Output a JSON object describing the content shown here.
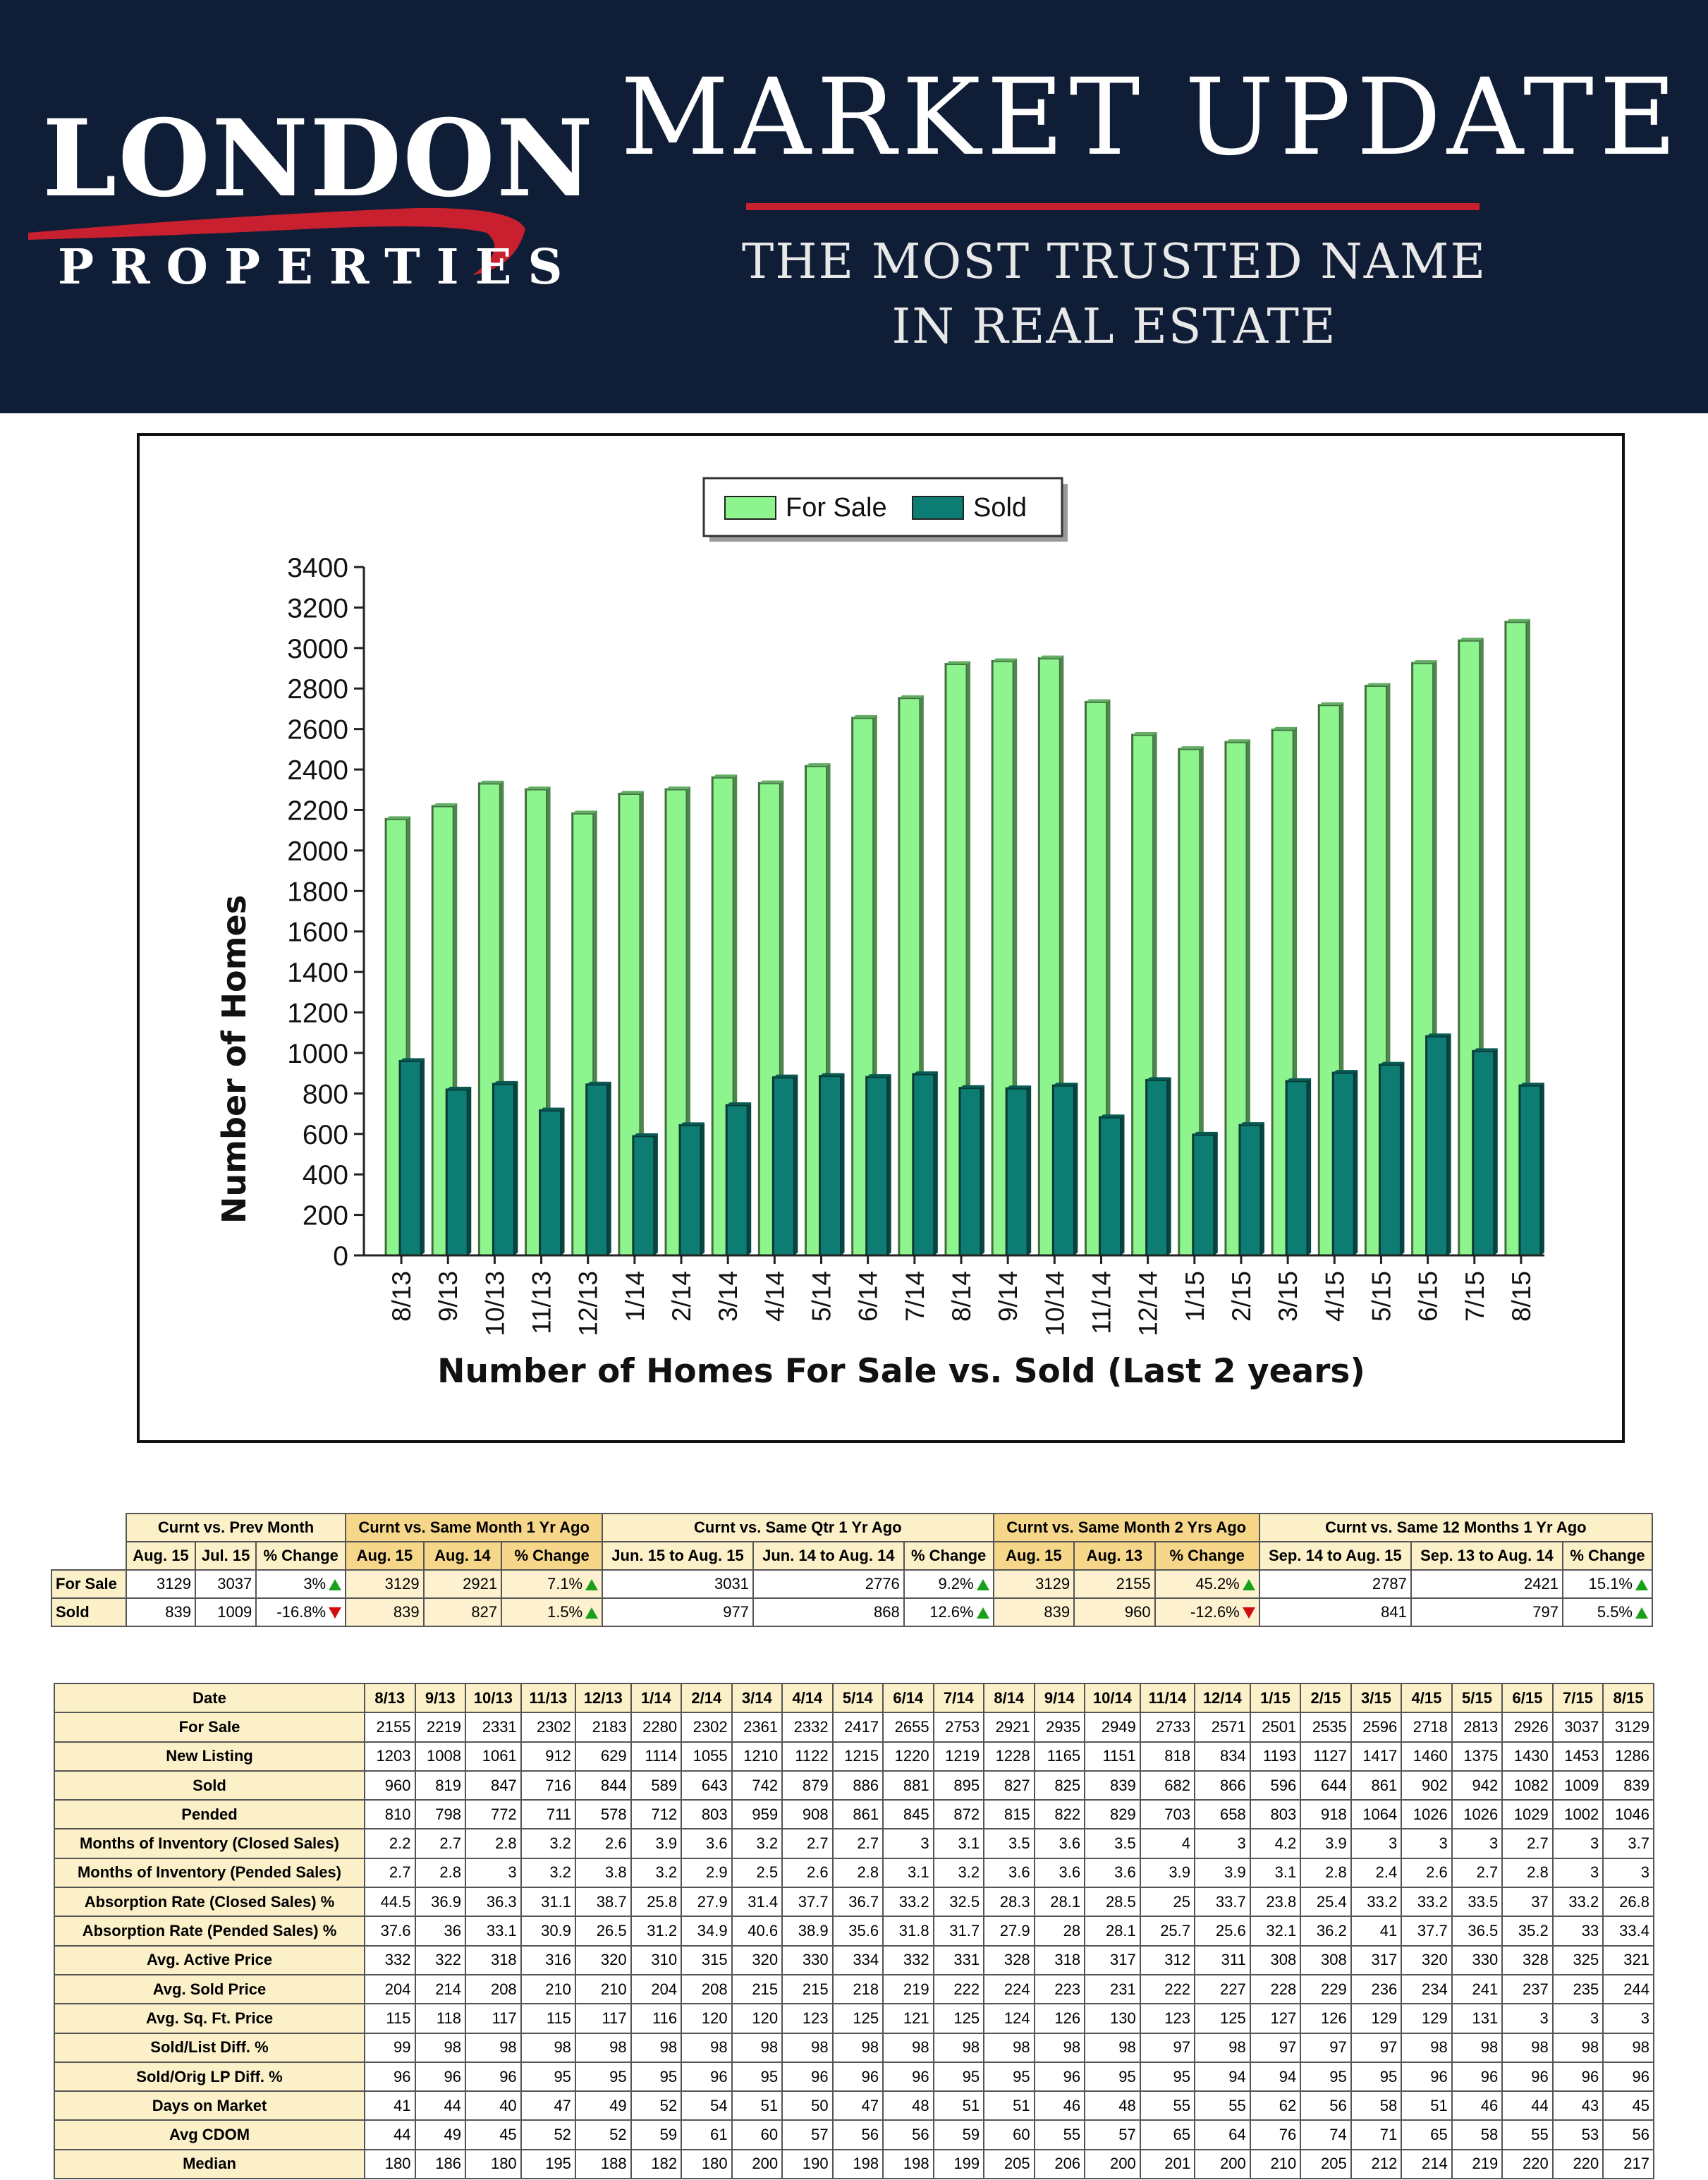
{
  "header": {
    "logo_main": "LONDON",
    "logo_sub": "PROPERTIES",
    "title": "MARKET UPDATE",
    "tagline_line1": "THE MOST TRUSTED NAME",
    "tagline_line2": "IN REAL ESTATE",
    "background_color": "#0f1d36",
    "accent_color": "#c8202f"
  },
  "chart_data": {
    "type": "bar",
    "title": "Number of Homes For Sale vs. Sold (Last 2 years)",
    "xlabel": "",
    "ylabel": "Number of Homes",
    "ylim": [
      0,
      3400
    ],
    "yticks": [
      0,
      200,
      400,
      600,
      800,
      1000,
      1200,
      1400,
      1600,
      1800,
      2000,
      2200,
      2400,
      2600,
      2800,
      3000,
      3200,
      3400
    ],
    "categories": [
      "8/13",
      "9/13",
      "10/13",
      "11/13",
      "12/13",
      "1/14",
      "2/14",
      "3/14",
      "4/14",
      "5/14",
      "6/14",
      "7/14",
      "8/14",
      "9/14",
      "10/14",
      "11/14",
      "12/14",
      "1/15",
      "2/15",
      "3/15",
      "4/15",
      "5/15",
      "6/15",
      "7/15",
      "8/15"
    ],
    "series": [
      {
        "name": "For Sale",
        "color": "#8ef58e",
        "values": [
          2155,
          2219,
          2331,
          2302,
          2183,
          2280,
          2302,
          2361,
          2332,
          2417,
          2655,
          2753,
          2921,
          2935,
          2949,
          2733,
          2571,
          2501,
          2535,
          2596,
          2718,
          2813,
          2926,
          3037,
          3129
        ]
      },
      {
        "name": "Sold",
        "color": "#0d7d74",
        "values": [
          960,
          819,
          847,
          716,
          844,
          589,
          643,
          742,
          879,
          886,
          881,
          895,
          827,
          825,
          839,
          682,
          866,
          596,
          644,
          861,
          902,
          942,
          1082,
          1009,
          839
        ]
      }
    ],
    "legend_position": "top-center"
  },
  "summary": {
    "groups": [
      "Curnt vs. Prev Month",
      "Curnt vs. Same Month 1 Yr Ago",
      "Curnt vs. Same Qtr 1 Yr Ago",
      "Curnt vs. Same Month 2 Yrs Ago",
      "Curnt vs. Same 12 Months 1 Yr Ago"
    ],
    "subheaders": [
      "Aug. 15",
      "Jul. 15",
      "% Change",
      "Aug. 15",
      "Aug. 14",
      "% Change",
      "Jun. 15 to Aug. 15",
      "Jun. 14 to Aug. 14",
      "% Change",
      "Aug. 15",
      "Aug. 13",
      "% Change",
      "Sep. 14 to Aug. 15",
      "Sep. 13 to Aug. 14",
      "% Change"
    ],
    "rows": [
      {
        "label": "For Sale",
        "cells": [
          "3129",
          "3037",
          "3%",
          "3129",
          "2921",
          "7.1%",
          "3031",
          "2776",
          "9.2%",
          "3129",
          "2155",
          "45.2%",
          "2787",
          "2421",
          "15.1%"
        ],
        "dirs": [
          "up",
          "up",
          "up",
          "up",
          "up"
        ]
      },
      {
        "label": "Sold",
        "cells": [
          "839",
          "1009",
          "-16.8%",
          "839",
          "827",
          "1.5%",
          "977",
          "868",
          "12.6%",
          "839",
          "960",
          "-12.6%",
          "841",
          "797",
          "5.5%"
        ],
        "dirs": [
          "down",
          "up",
          "up",
          "down",
          "up"
        ]
      }
    ]
  },
  "stats": {
    "header_label": "Date",
    "dates": [
      "8/13",
      "9/13",
      "10/13",
      "11/13",
      "12/13",
      "1/14",
      "2/14",
      "3/14",
      "4/14",
      "5/14",
      "6/14",
      "7/14",
      "8/14",
      "9/14",
      "10/14",
      "11/14",
      "12/14",
      "1/15",
      "2/15",
      "3/15",
      "4/15",
      "5/15",
      "6/15",
      "7/15",
      "8/15"
    ],
    "rows": [
      {
        "label": "For Sale",
        "values": [
          "2155",
          "2219",
          "2331",
          "2302",
          "2183",
          "2280",
          "2302",
          "2361",
          "2332",
          "2417",
          "2655",
          "2753",
          "2921",
          "2935",
          "2949",
          "2733",
          "2571",
          "2501",
          "2535",
          "2596",
          "2718",
          "2813",
          "2926",
          "3037",
          "3129"
        ]
      },
      {
        "label": "New Listing",
        "values": [
          "1203",
          "1008",
          "1061",
          "912",
          "629",
          "1114",
          "1055",
          "1210",
          "1122",
          "1215",
          "1220",
          "1219",
          "1228",
          "1165",
          "1151",
          "818",
          "834",
          "1193",
          "1127",
          "1417",
          "1460",
          "1375",
          "1430",
          "1453",
          "1286"
        ]
      },
      {
        "label": "Sold",
        "values": [
          "960",
          "819",
          "847",
          "716",
          "844",
          "589",
          "643",
          "742",
          "879",
          "886",
          "881",
          "895",
          "827",
          "825",
          "839",
          "682",
          "866",
          "596",
          "644",
          "861",
          "902",
          "942",
          "1082",
          "1009",
          "839"
        ]
      },
      {
        "label": "Pended",
        "values": [
          "810",
          "798",
          "772",
          "711",
          "578",
          "712",
          "803",
          "959",
          "908",
          "861",
          "845",
          "872",
          "815",
          "822",
          "829",
          "703",
          "658",
          "803",
          "918",
          "1064",
          "1026",
          "1026",
          "1029",
          "1002",
          "1046"
        ]
      },
      {
        "label": "Months of Inventory (Closed Sales)",
        "values": [
          "2.2",
          "2.7",
          "2.8",
          "3.2",
          "2.6",
          "3.9",
          "3.6",
          "3.2",
          "2.7",
          "2.7",
          "3",
          "3.1",
          "3.5",
          "3.6",
          "3.5",
          "4",
          "3",
          "4.2",
          "3.9",
          "3",
          "3",
          "3",
          "2.7",
          "3",
          "3.7"
        ]
      },
      {
        "label": "Months of Inventory (Pended Sales)",
        "values": [
          "2.7",
          "2.8",
          "3",
          "3.2",
          "3.8",
          "3.2",
          "2.9",
          "2.5",
          "2.6",
          "2.8",
          "3.1",
          "3.2",
          "3.6",
          "3.6",
          "3.6",
          "3.9",
          "3.9",
          "3.1",
          "2.8",
          "2.4",
          "2.6",
          "2.7",
          "2.8",
          "3",
          "3"
        ]
      },
      {
        "label": "Absorption Rate (Closed Sales) %",
        "values": [
          "44.5",
          "36.9",
          "36.3",
          "31.1",
          "38.7",
          "25.8",
          "27.9",
          "31.4",
          "37.7",
          "36.7",
          "33.2",
          "32.5",
          "28.3",
          "28.1",
          "28.5",
          "25",
          "33.7",
          "23.8",
          "25.4",
          "33.2",
          "33.2",
          "33.5",
          "37",
          "33.2",
          "26.8"
        ]
      },
      {
        "label": "Absorption Rate (Pended Sales) %",
        "values": [
          "37.6",
          "36",
          "33.1",
          "30.9",
          "26.5",
          "31.2",
          "34.9",
          "40.6",
          "38.9",
          "35.6",
          "31.8",
          "31.7",
          "27.9",
          "28",
          "28.1",
          "25.7",
          "25.6",
          "32.1",
          "36.2",
          "41",
          "37.7",
          "36.5",
          "35.2",
          "33",
          "33.4"
        ]
      },
      {
        "label": "Avg. Active Price",
        "values": [
          "332",
          "322",
          "318",
          "316",
          "320",
          "310",
          "315",
          "320",
          "330",
          "334",
          "332",
          "331",
          "328",
          "318",
          "317",
          "312",
          "311",
          "308",
          "308",
          "317",
          "320",
          "330",
          "328",
          "325",
          "321"
        ]
      },
      {
        "label": "Avg. Sold Price",
        "values": [
          "204",
          "214",
          "208",
          "210",
          "210",
          "204",
          "208",
          "215",
          "215",
          "218",
          "219",
          "222",
          "224",
          "223",
          "231",
          "222",
          "227",
          "228",
          "229",
          "236",
          "234",
          "241",
          "237",
          "235",
          "244"
        ]
      },
      {
        "label": "Avg. Sq. Ft. Price",
        "values": [
          "115",
          "118",
          "117",
          "115",
          "117",
          "116",
          "120",
          "120",
          "123",
          "125",
          "121",
          "125",
          "124",
          "126",
          "130",
          "123",
          "125",
          "127",
          "126",
          "129",
          "129",
          "131",
          "3",
          "3",
          "3"
        ]
      },
      {
        "label": "Sold/List Diff. %",
        "values": [
          "99",
          "98",
          "98",
          "98",
          "98",
          "98",
          "98",
          "98",
          "98",
          "98",
          "98",
          "98",
          "98",
          "98",
          "98",
          "97",
          "98",
          "97",
          "97",
          "97",
          "98",
          "98",
          "98",
          "98",
          "98"
        ]
      },
      {
        "label": "Sold/Orig LP Diff. %",
        "values": [
          "96",
          "96",
          "96",
          "95",
          "95",
          "95",
          "96",
          "95",
          "96",
          "96",
          "96",
          "95",
          "95",
          "96",
          "95",
          "95",
          "94",
          "94",
          "95",
          "95",
          "96",
          "96",
          "96",
          "96",
          "96"
        ]
      },
      {
        "label": "Days on Market",
        "values": [
          "41",
          "44",
          "40",
          "47",
          "49",
          "52",
          "54",
          "51",
          "50",
          "47",
          "48",
          "51",
          "51",
          "46",
          "48",
          "55",
          "55",
          "62",
          "56",
          "58",
          "51",
          "46",
          "44",
          "43",
          "45"
        ]
      },
      {
        "label": "Avg CDOM",
        "values": [
          "44",
          "49",
          "45",
          "52",
          "52",
          "59",
          "61",
          "60",
          "57",
          "56",
          "56",
          "59",
          "60",
          "55",
          "57",
          "65",
          "64",
          "76",
          "74",
          "71",
          "65",
          "58",
          "55",
          "53",
          "56"
        ]
      },
      {
        "label": "Median",
        "values": [
          "180",
          "186",
          "180",
          "195",
          "188",
          "182",
          "180",
          "200",
          "190",
          "198",
          "198",
          "199",
          "205",
          "206",
          "200",
          "201",
          "200",
          "210",
          "205",
          "212",
          "214",
          "219",
          "220",
          "220",
          "217"
        ]
      }
    ]
  }
}
